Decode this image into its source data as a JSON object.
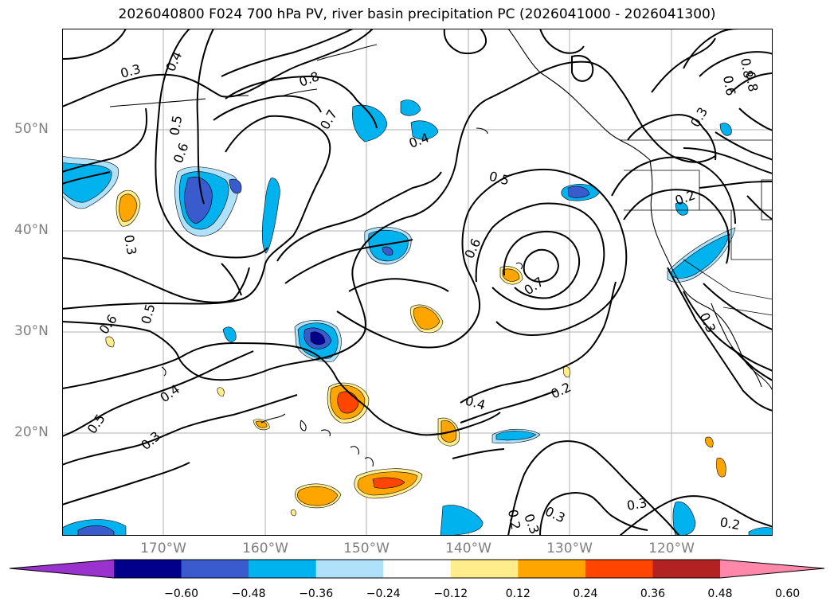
{
  "title": "2026040800 F024 700 hPa PV, river basin precipitation PC (2026041000 - 2026041300)",
  "lat_labels": [
    "50°N",
    "40°N",
    "30°N",
    "20°N"
  ],
  "lon_labels": [
    "170°W",
    "160°W",
    "150°W",
    "140°W",
    "130°W",
    "120°W"
  ],
  "colorbar": {
    "colors": [
      "#9a32cd",
      "#00008b",
      "#3a5bcd",
      "#00b2ee",
      "#afe1fa",
      "#ffffff",
      "#ffec8b",
      "#ffa500",
      "#ff4500",
      "#b22222",
      "#ff88aa"
    ],
    "tick_labels": [
      "−0.60",
      "−0.48",
      "−0.36",
      "−0.24",
      "−0.12",
      "0.12",
      "0.24",
      "0.36",
      "0.48",
      "0.60"
    ]
  },
  "contour_labels": [
    "0.3",
    "0.4",
    "0.5",
    "0.6",
    "0.8",
    "0.7",
    "0.4",
    "0.5",
    "0.6",
    "0.7",
    "0.3",
    "0.5",
    "0.6",
    "0.3",
    "0.4",
    "0.5",
    "0.3",
    "0.4",
    "0.2",
    "0.2",
    "0.3",
    "0.3",
    "0.2",
    "0.2",
    "0.3",
    "0.3",
    "0.8",
    "0.6",
    "0.8"
  ]
}
